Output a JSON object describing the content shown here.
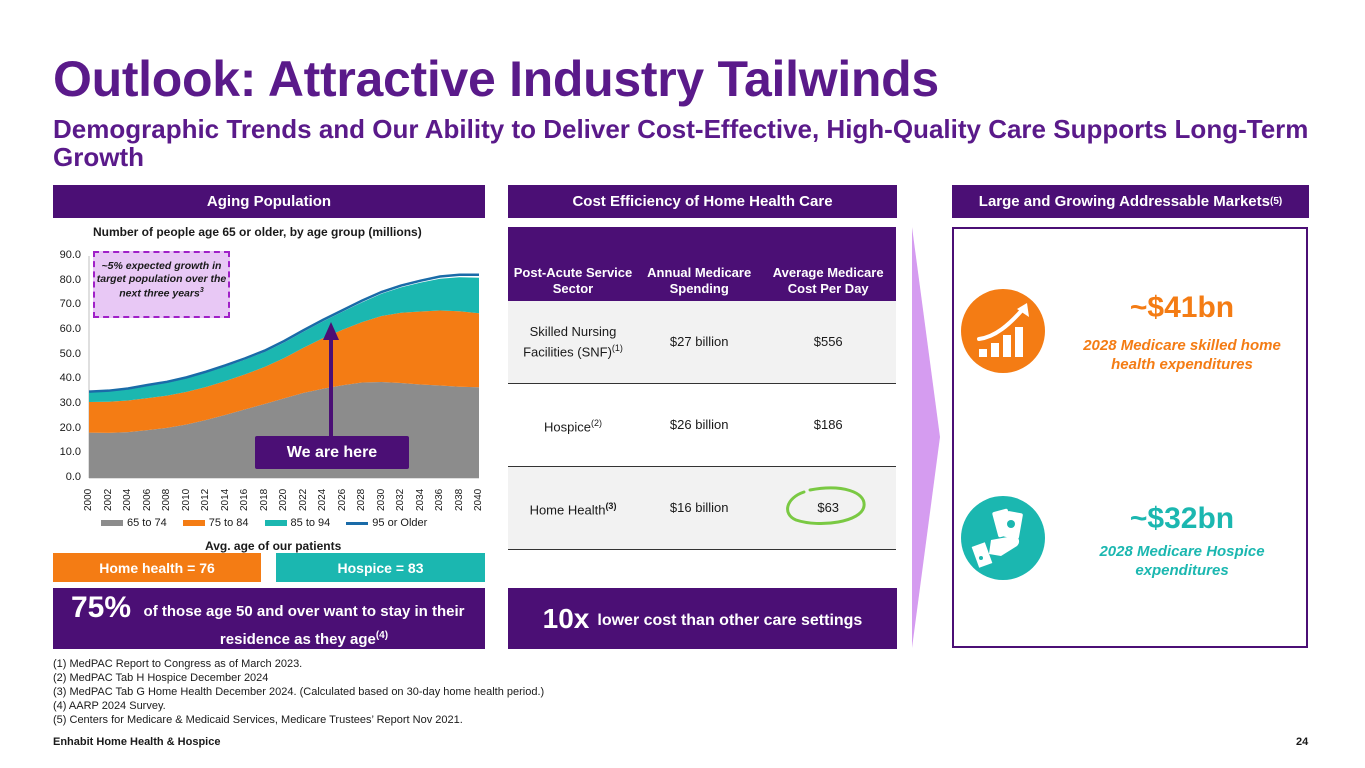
{
  "page": {
    "title": "Outlook: Attractive Industry Tailwinds",
    "subtitle": "Demographic Trends and Our Ability to Deliver Cost-Effective, High-Quality Care Supports Long-Term Growth",
    "footer_left": "Enhabit Home Health & Hospice",
    "page_number": "24"
  },
  "aging": {
    "header": "Aging Population",
    "callout": "~5% expected growth in target population over the next three years",
    "callout_sup": "3",
    "marker_label": "We are here",
    "avg_age_label": "Avg. age of our patients",
    "home_health_pill": "Home health = 76",
    "hospice_pill": "Hospice = 83",
    "banner_big": "75%",
    "banner_text": "of those age 50 and over want to stay in their residence as they age",
    "banner_sup": "(4)"
  },
  "chart_data": {
    "type": "area",
    "title": "Number of people age 65 or older, by age group (millions)",
    "ylim": [
      0,
      90
    ],
    "yticks": [
      "0.0",
      "10.0",
      "20.0",
      "30.0",
      "40.0",
      "50.0",
      "60.0",
      "70.0",
      "80.0",
      "90.0"
    ],
    "x": [
      "2000",
      "2002",
      "2004",
      "2006",
      "2008",
      "2010",
      "2012",
      "2014",
      "2016",
      "2018",
      "2020",
      "2022",
      "2024",
      "2026",
      "2028",
      "2030",
      "2032",
      "2034",
      "2036",
      "2038",
      "2040"
    ],
    "series": [
      {
        "name": "65 to 74",
        "color": "#8c8c8c",
        "values": [
          18.4,
          18.3,
          18.6,
          19.4,
          20.3,
          21.7,
          23.5,
          25.6,
          27.8,
          30.0,
          32.3,
          34.5,
          36.2,
          37.6,
          38.7,
          38.9,
          38.5,
          37.9,
          37.5,
          37.0,
          36.8
        ]
      },
      {
        "name": "75 to 84",
        "color": "#f47c14",
        "values": [
          12.4,
          12.6,
          12.8,
          13.0,
          13.1,
          13.2,
          13.4,
          13.7,
          14.2,
          15.0,
          16.3,
          18.3,
          20.5,
          22.5,
          24.5,
          26.8,
          28.5,
          29.6,
          30.4,
          30.6,
          30.0
        ]
      },
      {
        "name": "85 to 94",
        "color": "#1bb7b0",
        "values": [
          3.9,
          4.2,
          4.5,
          4.9,
          5.2,
          5.5,
          5.8,
          5.9,
          6.0,
          6.1,
          6.3,
          6.5,
          6.8,
          7.3,
          8.0,
          9.0,
          10.3,
          11.7,
          12.9,
          13.8,
          14.4
        ]
      },
      {
        "name": "95 or Older",
        "color": "#1a6ba8",
        "values": [
          0.3,
          0.3,
          0.4,
          0.4,
          0.4,
          0.4,
          0.4,
          0.5,
          0.5,
          0.5,
          0.6,
          0.6,
          0.6,
          0.6,
          0.7,
          0.7,
          0.7,
          0.8,
          0.9,
          1.0,
          1.2
        ]
      }
    ],
    "marker_year": "2024"
  },
  "cost": {
    "header": "Cost Efficiency of Home Health Care",
    "columns": [
      "Post-Acute Service Sector",
      "Annual Medicare Spending",
      "Average Medicare Cost Per Day"
    ],
    "rows": [
      {
        "sector": "Skilled Nursing Facilities (SNF)",
        "sup": "(1)",
        "spending": "$27 billion",
        "cost": "$556"
      },
      {
        "sector": "Hospice",
        "sup": "(2)",
        "spending": "$26 billion",
        "cost": "$186"
      },
      {
        "sector": "Home Health",
        "sup": "(3)",
        "spending": "$16 billion",
        "cost": "$63"
      }
    ],
    "banner_big": "10x",
    "banner_text": "lower cost than other care settings"
  },
  "markets": {
    "header": "Large and Growing Addressable Markets",
    "header_sup": "(5)",
    "items": [
      {
        "value": "~$41bn",
        "label": "2028 Medicare skilled home health expenditures",
        "color": "#f47c14",
        "icon": "growth-chart-icon"
      },
      {
        "value": "~$32bn",
        "label": "2028 Medicare Hospice expenditures",
        "color": "#1bb7b0",
        "icon": "money-hand-icon"
      }
    ]
  },
  "footnotes": [
    "(1) MedPAC Report to Congress as of March 2023.",
    "(2) MedPAC Tab H Hospice December 2024",
    "(3) MedPAC Tab G Home Health December 2024. (Calculated based on 30-day home health period.)",
    "(4) AARP 2024 Survey.",
    "(5) Centers for Medicare & Medicaid Services, Medicare Trustees’ Report Nov 2021."
  ]
}
